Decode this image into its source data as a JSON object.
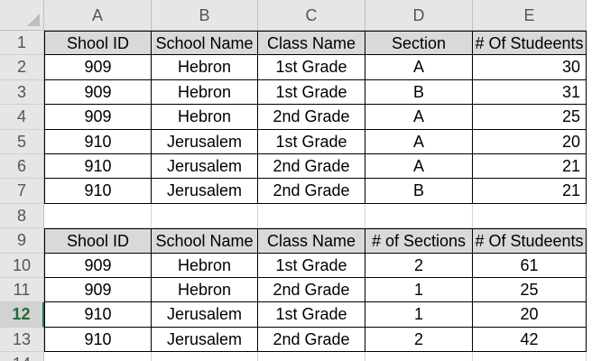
{
  "columns": [
    "A",
    "B",
    "C",
    "D",
    "E"
  ],
  "rows": [
    "1",
    "2",
    "3",
    "4",
    "5",
    "6",
    "7",
    "8",
    "9",
    "10",
    "11",
    "12",
    "13",
    "14"
  ],
  "active_row": "12",
  "table1": {
    "headers": [
      "Shool ID",
      "School Name",
      "Class Name",
      "Section",
      "# Of Studeents"
    ],
    "rows": [
      [
        "909",
        "Hebron",
        "1st Grade",
        "A",
        "30"
      ],
      [
        "909",
        "Hebron",
        "1st Grade",
        "B",
        "31"
      ],
      [
        "909",
        "Hebron",
        "2nd Grade",
        "A",
        "25"
      ],
      [
        "910",
        "Jerusalem",
        "1st Grade",
        "A",
        "20"
      ],
      [
        "910",
        "Jerusalem",
        "2nd Grade",
        "A",
        "21"
      ],
      [
        "910",
        "Jerusalem",
        "2nd Grade",
        "B",
        "21"
      ]
    ]
  },
  "table2": {
    "headers": [
      "Shool ID",
      "School Name",
      "Class Name",
      "# of Sections",
      "# Of Studeents"
    ],
    "rows": [
      [
        "909",
        "Hebron",
        "1st Grade",
        "2",
        "61"
      ],
      [
        "909",
        "Hebron",
        "2nd Grade",
        "1",
        "25"
      ],
      [
        "910",
        "Jerusalem",
        "1st Grade",
        "1",
        "20"
      ],
      [
        "910",
        "Jerusalem",
        "2nd Grade",
        "2",
        "42"
      ]
    ]
  },
  "colors": {
    "header_fill": "#d9d9d9",
    "sheet_header_bg": "#e6e6e6",
    "active_row_accent": "#217346"
  }
}
